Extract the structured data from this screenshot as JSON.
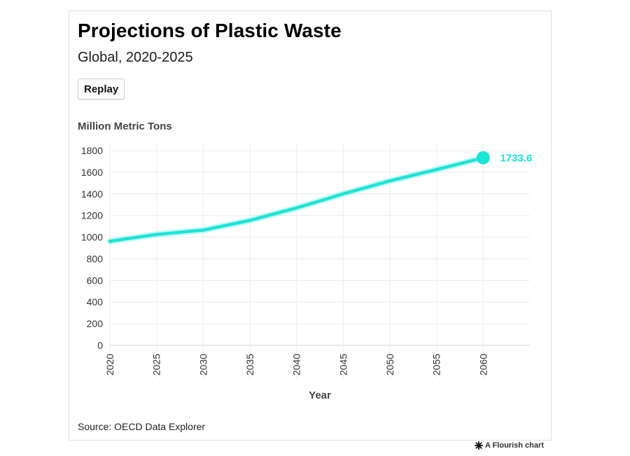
{
  "title": "Projections of Plastic Waste",
  "subtitle": "Global, 2020-2025",
  "replay_label": "Replay",
  "source": "Source: OECD Data Explorer",
  "credit": "A Flourish chart",
  "chart_data": {
    "type": "line",
    "ylabel": "Million Metric Tons",
    "xlabel": "Year",
    "ylim": [
      0,
      1800
    ],
    "yticks": [
      0,
      200,
      400,
      600,
      800,
      1000,
      1200,
      1400,
      1600,
      1800
    ],
    "xlim": [
      2020,
      2065
    ],
    "xticks": [
      2020,
      2025,
      2030,
      2035,
      2040,
      2045,
      2050,
      2055,
      2060
    ],
    "grid": true,
    "line_color": "#19e5d8",
    "series": [
      {
        "x": [
          2020,
          2025,
          2030,
          2035,
          2040,
          2045,
          2050,
          2055,
          2060
        ],
        "values": [
          962,
          1025,
          1065,
          1155,
          1270,
          1400,
          1520,
          1625,
          1733.6
        ]
      }
    ],
    "end_label": "1733.6"
  }
}
